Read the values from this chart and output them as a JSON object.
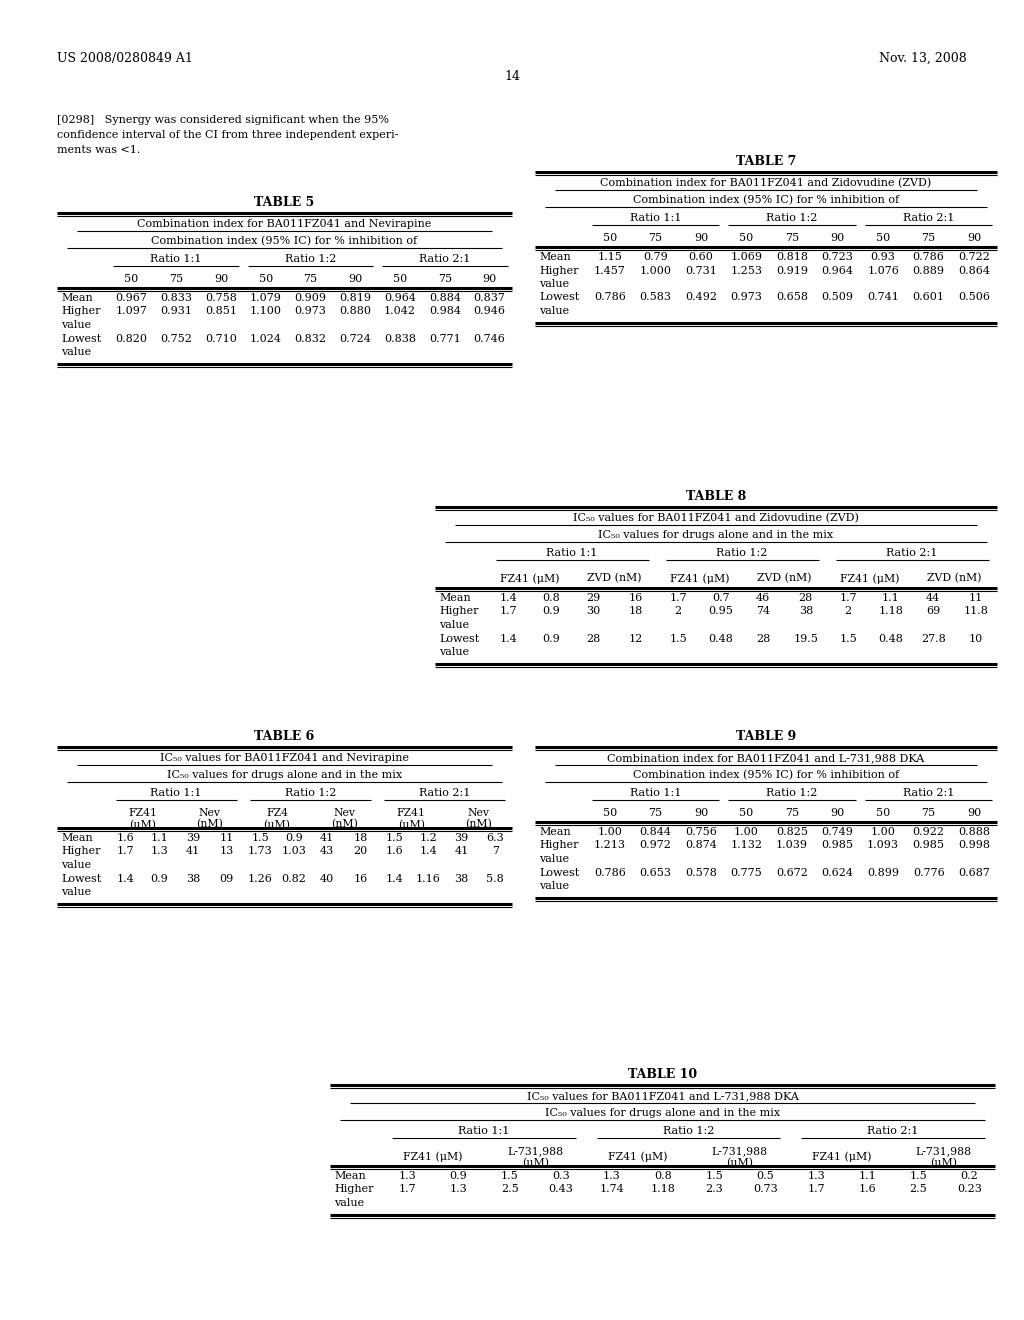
{
  "header_left": "US 2008/0280849 A1",
  "header_right": "Nov. 13, 2008",
  "page_number": "14",
  "para_lines": [
    "[0298]   Synergy was considered significant when the 95%",
    "confidence interval of the CI from three independent experi-",
    "ments was <1."
  ],
  "table5_title": "TABLE 5",
  "table5_sub1": "Combination index for BA011FZ041 and Nevirapine",
  "table5_sub2": "Combination index (95% IC) for % inhibition of",
  "table5_ratios": [
    "Ratio 1:1",
    "Ratio 1:2",
    "Ratio 2:1"
  ],
  "table5_cols": [
    "50",
    "75",
    "90",
    "50",
    "75",
    "90",
    "50",
    "75",
    "90"
  ],
  "table5_data": [
    [
      "Mean",
      "0.967",
      "0.833",
      "0.758",
      "1.079",
      "0.909",
      "0.819",
      "0.964",
      "0.884",
      "0.837"
    ],
    [
      "Higher",
      "1.097",
      "0.931",
      "0.851",
      "1.100",
      "0.973",
      "0.880",
      "1.042",
      "0.984",
      "0.946"
    ],
    [
      "value",
      "",
      "",
      "",
      "",
      "",
      "",
      "",
      "",
      ""
    ],
    [
      "Lowest",
      "0.820",
      "0.752",
      "0.710",
      "1.024",
      "0.832",
      "0.724",
      "0.838",
      "0.771",
      "0.746"
    ],
    [
      "value",
      "",
      "",
      "",
      "",
      "",
      "",
      "",
      "",
      ""
    ]
  ],
  "table7_title": "TABLE 7",
  "table7_sub1": "Combination index for BA011FZ041 and Zidovudine (ZVD)",
  "table7_sub2": "Combination index (95% IC) for % inhibition of",
  "table7_ratios": [
    "Ratio 1:1",
    "Ratio 1:2",
    "Ratio 2:1"
  ],
  "table7_cols": [
    "50",
    "75",
    "90",
    "50",
    "75",
    "90",
    "50",
    "75",
    "90"
  ],
  "table7_data": [
    [
      "Mean",
      "1.15",
      "0.79",
      "0.60",
      "1.069",
      "0.818",
      "0.723",
      "0.93",
      "0.786",
      "0.722"
    ],
    [
      "Higher",
      "1.457",
      "1.000",
      "0.731",
      "1.253",
      "0.919",
      "0.964",
      "1.076",
      "0.889",
      "0.864"
    ],
    [
      "value",
      "",
      "",
      "",
      "",
      "",
      "",
      "",
      "",
      ""
    ],
    [
      "Lowest",
      "0.786",
      "0.583",
      "0.492",
      "0.973",
      "0.658",
      "0.509",
      "0.741",
      "0.601",
      "0.506"
    ],
    [
      "value",
      "",
      "",
      "",
      "",
      "",
      "",
      "",
      "",
      ""
    ]
  ],
  "table8_title": "TABLE 8",
  "table8_sub1": "IC₅₀ values for BA011FZ041 and Zidovudine (ZVD)",
  "table8_sub2": "IC₅₀ values for drugs alone and in the mix",
  "table8_ratios": [
    "Ratio 1:1",
    "Ratio 1:2",
    "Ratio 2:1"
  ],
  "table8_col_headers": [
    "FZ41 (μM)",
    "ZVD (nM)",
    "FZ41 (μM)",
    "ZVD (nM)",
    "FZ41 (μM)",
    "ZVD (nM)"
  ],
  "table8_data": [
    [
      "Mean",
      "1.4",
      "0.8",
      "29",
      "16",
      "1.7",
      "0.7",
      "46",
      "28",
      "1.7",
      "1.1",
      "44",
      "11"
    ],
    [
      "Higher",
      "1.7",
      "0.9",
      "30",
      "18",
      "2",
      "0.95",
      "74",
      "38",
      "2",
      "1.18",
      "69",
      "11.8"
    ],
    [
      "value",
      "",
      "",
      "",
      "",
      "",
      "",
      "",
      "",
      "",
      "",
      "",
      ""
    ],
    [
      "Lowest",
      "1.4",
      "0.9",
      "28",
      "12",
      "1.5",
      "0.48",
      "28",
      "19.5",
      "1.5",
      "0.48",
      "27.8",
      "10"
    ],
    [
      "value",
      "",
      "",
      "",
      "",
      "",
      "",
      "",
      "",
      "",
      "",
      "",
      ""
    ]
  ],
  "table6_title": "TABLE 6",
  "table6_sub1": "IC₅₀ values for BA011FZ041 and Nevirapine",
  "table6_sub2": "IC₅₀ values for drugs alone and in the mix",
  "table6_ratios": [
    "Ratio 1:1",
    "Ratio 1:2",
    "Ratio 2:1"
  ],
  "table6_col_headers": [
    "FZ41\n(μM)",
    "Nev\n(nM)",
    "FZ4\n(μM)",
    "Nev\n(nM)",
    "FZ41\n(μM)",
    "Nev\n(nM)"
  ],
  "table6_data": [
    [
      "Mean",
      "1.6",
      "1.1",
      "39",
      "11",
      "1.5",
      "0.9",
      "41",
      "18",
      "1.5",
      "1.2",
      "39",
      "6.3"
    ],
    [
      "Higher",
      "1.7",
      "1.3",
      "41",
      "13",
      "1.73",
      "1.03",
      "43",
      "20",
      "1.6",
      "1.4",
      "41",
      "7"
    ],
    [
      "value",
      "",
      "",
      "",
      "",
      "",
      "",
      "",
      "",
      "",
      "",
      "",
      ""
    ],
    [
      "Lowest",
      "1.4",
      "0.9",
      "38",
      "09",
      "1.26",
      "0.82",
      "40",
      "16",
      "1.4",
      "1.16",
      "38",
      "5.8"
    ],
    [
      "value",
      "",
      "",
      "",
      "",
      "",
      "",
      "",
      "",
      "",
      "",
      "",
      ""
    ]
  ],
  "table9_title": "TABLE 9",
  "table9_sub1": "Combination index for BA011FZ041 and L-731,988 DKA",
  "table9_sub2": "Combination index (95% IC) for % inhibition of",
  "table9_ratios": [
    "Ratio 1:1",
    "Ratio 1:2",
    "Ratio 2:1"
  ],
  "table9_cols": [
    "50",
    "75",
    "90",
    "50",
    "75",
    "90",
    "50",
    "75",
    "90"
  ],
  "table9_data": [
    [
      "Mean",
      "1.00",
      "0.844",
      "0.756",
      "1.00",
      "0.825",
      "0.749",
      "1.00",
      "0.922",
      "0.888"
    ],
    [
      "Higher",
      "1.213",
      "0.972",
      "0.874",
      "1.132",
      "1.039",
      "0.985",
      "1.093",
      "0.985",
      "0.998"
    ],
    [
      "value",
      "",
      "",
      "",
      "",
      "",
      "",
      "",
      "",
      ""
    ],
    [
      "Lowest",
      "0.786",
      "0.653",
      "0.578",
      "0.775",
      "0.672",
      "0.624",
      "0.899",
      "0.776",
      "0.687"
    ],
    [
      "value",
      "",
      "",
      "",
      "",
      "",
      "",
      "",
      "",
      ""
    ]
  ],
  "table10_title": "TABLE 10",
  "table10_sub1": "IC₅₀ values for BA011FZ041 and L-731,988 DKA",
  "table10_sub2": "IC₅₀ values for drugs alone and in the mix",
  "table10_ratios": [
    "Ratio 1:1",
    "Ratio 1:2",
    "Ratio 2:1"
  ],
  "table10_col_headers": [
    "FZ41 (μM)",
    "L-731,988\n(μM)",
    "FZ41 (μM)",
    "L-731,988\n(μM)",
    "FZ41 (μM)",
    "L-731,988\n(μM)"
  ],
  "table10_data": [
    [
      "Mean",
      "1.3",
      "0.9",
      "1.5",
      "0.3",
      "1.3",
      "0.8",
      "1.5",
      "0.5",
      "1.3",
      "1.1",
      "1.5",
      "0.2"
    ],
    [
      "Higher",
      "1.7",
      "1.3",
      "2.5",
      "0.43",
      "1.74",
      "1.18",
      "2.3",
      "0.73",
      "1.7",
      "1.6",
      "2.5",
      "0.23"
    ],
    [
      "value",
      "",
      "",
      "",
      "",
      "",
      "",
      "",
      "",
      "",
      "",
      "",
      ""
    ]
  ]
}
